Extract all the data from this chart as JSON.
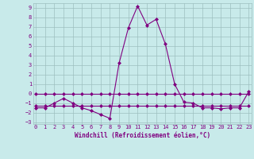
{
  "xlabel": "Windchill (Refroidissement éolien,°C)",
  "x": [
    0,
    1,
    2,
    3,
    4,
    5,
    6,
    7,
    8,
    9,
    10,
    11,
    12,
    13,
    14,
    15,
    16,
    17,
    18,
    19,
    20,
    21,
    22,
    23
  ],
  "y_curve": [
    -1.5,
    -1.5,
    -1.0,
    -0.5,
    -1.0,
    -1.5,
    -1.8,
    -2.2,
    -2.6,
    3.2,
    6.9,
    9.2,
    7.2,
    7.8,
    5.2,
    1.0,
    -0.9,
    -1.0,
    -1.5,
    -1.5,
    -1.6,
    -1.5,
    -1.5,
    0.2
  ],
  "y_line1": [
    0.0,
    0.0,
    0.0,
    0.0,
    0.0,
    0.0,
    0.0,
    0.0,
    0.0,
    0.0,
    0.0,
    0.0,
    0.0,
    0.0,
    0.0,
    0.0,
    0.0,
    0.0,
    0.0,
    0.0,
    0.0,
    0.0,
    0.0,
    0.0
  ],
  "y_line2": [
    -1.3,
    -1.3,
    -1.3,
    -1.3,
    -1.3,
    -1.3,
    -1.3,
    -1.3,
    -1.3,
    -1.3,
    -1.3,
    -1.3,
    -1.3,
    -1.3,
    -1.3,
    -1.3,
    -1.3,
    -1.3,
    -1.3,
    -1.3,
    -1.3,
    -1.3,
    -1.3,
    -1.3
  ],
  "line_color": "#800080",
  "bg_color": "#c8eaea",
  "grid_color": "#9dbfbf",
  "ylim": [
    -3.2,
    9.5
  ],
  "xlim": [
    -0.3,
    23.3
  ],
  "yticks": [
    -3,
    -2,
    -1,
    0,
    1,
    2,
    3,
    4,
    5,
    6,
    7,
    8,
    9
  ],
  "xticks": [
    0,
    1,
    2,
    3,
    4,
    5,
    6,
    7,
    8,
    9,
    10,
    11,
    12,
    13,
    14,
    15,
    16,
    17,
    18,
    19,
    20,
    21,
    22,
    23
  ],
  "marker": "D",
  "markersize": 2.0,
  "linewidth": 0.8,
  "font_color": "#800080",
  "fontsize_label": 5.5,
  "fontsize_tick": 5.0
}
